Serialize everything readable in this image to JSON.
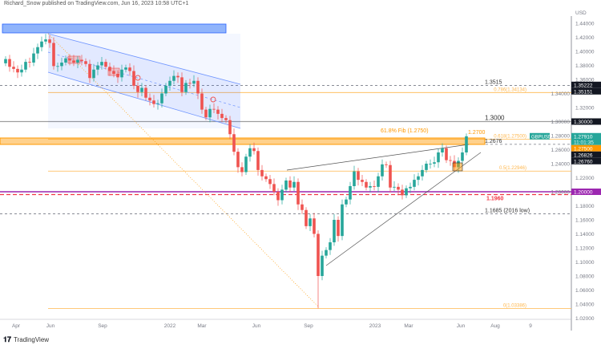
{
  "header": {
    "published": "Richard_Snow published on TradingView.com, Jun 16, 2023 10:58 UTC+1"
  },
  "footer": {
    "logo": "TradingView"
  },
  "chart_data": {
    "type": "candlestick",
    "symbol": "GBPUSD",
    "interval": "weekly",
    "currency_label": "USD",
    "y_ticks": [
      "1.44000",
      "1.42000",
      "1.40000",
      "1.38000",
      "1.36000",
      "1.34000",
      "1.32000",
      "1.30000",
      "1.28000",
      "1.26000",
      "1.24000",
      "1.22000",
      "1.20000",
      "1.18000",
      "1.16000",
      "1.14000",
      "1.12000",
      "1.10000",
      "1.08000",
      "1.06000",
      "1.04000",
      "1.02000"
    ],
    "ylim": [
      1.01,
      1.45
    ],
    "x_ticks": [
      "Apr",
      "Jun",
      "Sep",
      "2022",
      "Mar",
      "Jun",
      "Sep",
      "2023",
      "Mar",
      "Jun",
      "Aug",
      "9"
    ],
    "closes": [
      1.389,
      1.378,
      1.375,
      1.37,
      1.374,
      1.385,
      1.384,
      1.397,
      1.406,
      1.414,
      1.417,
      1.412,
      1.379,
      1.379,
      1.384,
      1.39,
      1.387,
      1.384,
      1.388,
      1.386,
      1.382,
      1.362,
      1.374,
      1.38,
      1.385,
      1.378,
      1.372,
      1.368,
      1.363,
      1.374,
      1.377,
      1.372,
      1.351,
      1.342,
      1.348,
      1.334,
      1.33,
      1.325,
      1.326,
      1.34,
      1.351,
      1.358,
      1.365,
      1.363,
      1.342,
      1.355,
      1.354,
      1.358,
      1.34,
      1.317,
      1.306,
      1.318,
      1.317,
      1.311,
      1.305,
      1.302,
      1.282,
      1.257,
      1.235,
      1.228,
      1.25,
      1.262,
      1.258,
      1.231,
      1.222,
      1.218,
      1.211,
      1.2,
      1.188,
      1.203,
      1.216,
      1.206,
      1.214,
      1.182,
      1.174,
      1.151,
      1.162,
      1.14,
      1.08,
      1.109,
      1.117,
      1.128,
      1.16,
      1.137,
      1.182,
      1.189,
      1.208,
      1.229,
      1.217,
      1.214,
      1.206,
      1.208,
      1.207,
      1.222,
      1.239,
      1.238,
      1.206,
      1.207,
      1.203,
      1.195,
      1.205,
      1.207,
      1.217,
      1.222,
      1.231,
      1.24,
      1.24,
      1.242,
      1.256,
      1.262,
      1.245,
      1.244,
      1.235,
      1.244,
      1.256,
      1.279
    ],
    "peak_high": 1.4249,
    "levels": [
      {
        "price": 1.3515,
        "label": "1.3515",
        "style": "dashed",
        "color": "#787b86"
      },
      {
        "price": 1.34134,
        "label": "0.786(1.34134)",
        "style": "fib",
        "color": "#ffb74d"
      },
      {
        "price": 1.3,
        "label": "1.3000",
        "style": "solid",
        "color": "#9e9e9e"
      },
      {
        "price": 1.275,
        "label": "0.618(1.27500)",
        "style": "fib",
        "color": "#ffb74d"
      },
      {
        "price": 1.2676,
        "label": "1.2676",
        "style": "dashed",
        "color": "#787b86"
      },
      {
        "price": 1.22946,
        "label": "0.5(1.22946)",
        "style": "fib",
        "color": "#ffb74d"
      },
      {
        "price": 1.2,
        "label": "",
        "style": "solid",
        "color": "#9c27b0"
      },
      {
        "price": 1.196,
        "label": "1.1960",
        "style": "reddash",
        "color": "#f23645"
      },
      {
        "price": 1.1685,
        "label": "1.1685 (2016 low)",
        "style": "dashed",
        "color": "#787b86"
      },
      {
        "price": 1.03386,
        "label": "0(1.03386)",
        "style": "fib",
        "color": "#ffb74d"
      }
    ],
    "annotations": {
      "fib_zone": "61.8% Fib (1.2750)",
      "zone_top": "1.2700"
    },
    "price_badges": [
      {
        "text": "1.35222",
        "price": 1.35222,
        "color": "#131722"
      },
      {
        "text": "1.35151",
        "price": 1.35151,
        "color": "#131722"
      },
      {
        "text": "1.30000",
        "price": 1.3,
        "color": "#131722"
      },
      {
        "text": "1.27500",
        "price": 1.2645,
        "color": "#ff9800"
      },
      {
        "text": "1.26826",
        "price": 1.2565,
        "color": "#131722"
      },
      {
        "text": "1.26760",
        "price": 1.2485,
        "color": "#131722"
      },
      {
        "text": "1.20000",
        "price": 1.2,
        "color": "#9c27b0"
      }
    ],
    "last_price": {
      "symbol": "GBPUSD",
      "price": "1.27910",
      "countdown": "11:01:35",
      "color": "#26a69a"
    },
    "colors": {
      "up": "#26a69a",
      "down": "#ef5350",
      "channel": "#5b8cff",
      "fib": "#ffb74d"
    }
  }
}
